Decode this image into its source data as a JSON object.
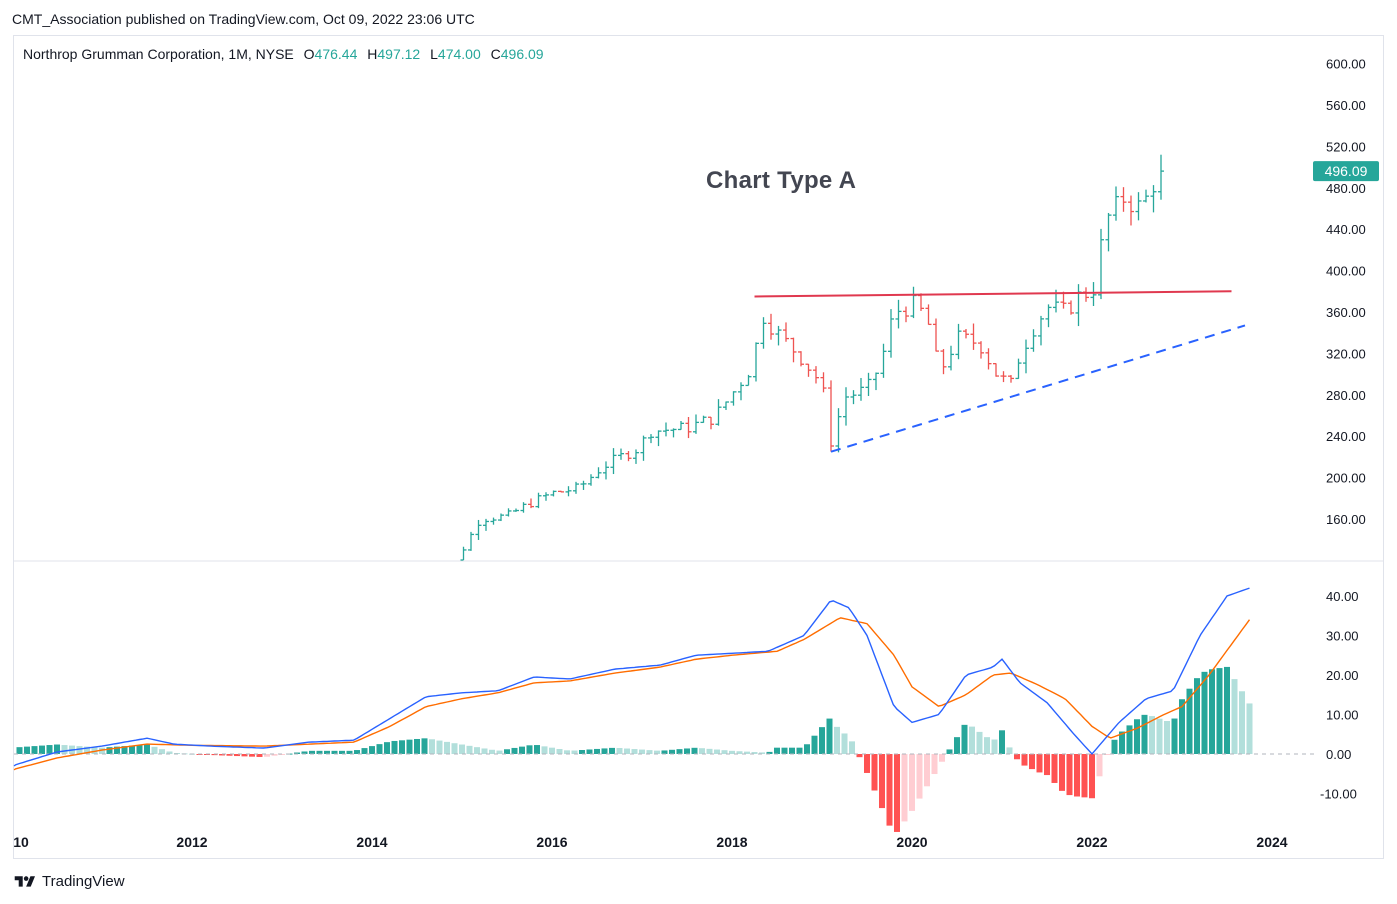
{
  "header": {
    "publish_text": "CMT_Association published on TradingView.com, Oct 09, 2022 23:06 UTC"
  },
  "legend": {
    "symbol": "Northrop Grumman Corporation, 1M, NYSE",
    "open_label": "O",
    "open": "476.44",
    "high_label": "H",
    "high": "497.12",
    "low_label": "L",
    "low": "474.00",
    "close_label": "C",
    "close": "496.09"
  },
  "annotation": "Chart Type A",
  "footer": {
    "brand": "TradingView"
  },
  "colors": {
    "up": "#26a69a",
    "down": "#ef5350",
    "macd": "#2962ff",
    "signal": "#ff6d00",
    "resistance": "#e0384f",
    "support": "#2962ff",
    "hist_up_strong": "#26a69a",
    "hist_up_weak": "#b2dfdb",
    "hist_down_strong": "#ff5252",
    "hist_down_weak": "#ffcdd2"
  },
  "chart_data": [
    {
      "type": "ohlc",
      "title": "",
      "interval": "1M",
      "price_axis_ticks": [
        160,
        200,
        240,
        280,
        320,
        360,
        400,
        440,
        480,
        520,
        560,
        600
      ],
      "last_price": "496.09",
      "date_ticks": [
        "10",
        "2012",
        "2014",
        "2016",
        "2018",
        "2020",
        "2022",
        "2024"
      ],
      "anchors": [
        [
          2014.6,
          105
        ],
        [
          2014.92,
          117
        ],
        [
          2015.2,
          160
        ],
        [
          2015.5,
          163
        ],
        [
          2015.75,
          175
        ],
        [
          2016.0,
          185
        ],
        [
          2016.3,
          190
        ],
        [
          2016.55,
          210
        ],
        [
          2016.8,
          222
        ],
        [
          2016.95,
          228
        ],
        [
          2017.1,
          245
        ],
        [
          2017.5,
          248
        ],
        [
          2017.8,
          258
        ],
        [
          2017.95,
          275
        ],
        [
          2018.2,
          305
        ],
        [
          2018.35,
          356
        ],
        [
          2018.55,
          335
        ],
        [
          2018.75,
          318
        ],
        [
          2019.0,
          290
        ],
        [
          2019.1,
          235
        ],
        [
          2019.25,
          278
        ],
        [
          2019.5,
          285
        ],
        [
          2019.65,
          310
        ],
        [
          2019.8,
          360
        ],
        [
          2020.05,
          368
        ],
        [
          2020.2,
          345
        ],
        [
          2020.3,
          300
        ],
        [
          2020.5,
          335
        ],
        [
          2020.75,
          330
        ],
        [
          2020.95,
          298
        ],
        [
          2021.1,
          290
        ],
        [
          2021.2,
          320
        ],
        [
          2021.35,
          345
        ],
        [
          2021.5,
          365
        ],
        [
          2021.7,
          360
        ],
        [
          2021.9,
          380
        ],
        [
          2022.0,
          375
        ],
        [
          2022.15,
          448
        ],
        [
          2022.35,
          470
        ],
        [
          2022.55,
          460
        ],
        [
          2022.7,
          488
        ],
        [
          2022.77,
          490
        ]
      ]
    },
    {
      "type": "macd",
      "value_axis_ticks": [
        -10,
        0,
        10,
        20,
        30,
        40
      ],
      "macd_line": [
        [
          2010.0,
          -3
        ],
        [
          2010.5,
          0.5
        ],
        [
          2011.0,
          2
        ],
        [
          2011.5,
          4
        ],
        [
          2011.8,
          2.5
        ],
        [
          2012.2,
          2
        ],
        [
          2012.8,
          1.5
        ],
        [
          2013.3,
          3
        ],
        [
          2013.8,
          3.5
        ],
        [
          2014.2,
          9
        ],
        [
          2014.6,
          14.5
        ],
        [
          2015.0,
          15.5
        ],
        [
          2015.4,
          16
        ],
        [
          2015.8,
          19.5
        ],
        [
          2016.2,
          19
        ],
        [
          2016.7,
          21.5
        ],
        [
          2017.2,
          22.5
        ],
        [
          2017.6,
          25
        ],
        [
          2018.0,
          25.5
        ],
        [
          2018.4,
          26
        ],
        [
          2018.8,
          30
        ],
        [
          2019.1,
          39
        ],
        [
          2019.3,
          37
        ],
        [
          2019.5,
          30
        ],
        [
          2019.8,
          12
        ],
        [
          2020.0,
          8
        ],
        [
          2020.3,
          10
        ],
        [
          2020.6,
          20
        ],
        [
          2020.9,
          22
        ],
        [
          2021.0,
          24
        ],
        [
          2021.2,
          18
        ],
        [
          2021.5,
          13
        ],
        [
          2021.8,
          5
        ],
        [
          2022.0,
          0
        ],
        [
          2022.3,
          8
        ],
        [
          2022.6,
          14
        ],
        [
          2022.9,
          16
        ],
        [
          2023.2,
          30
        ],
        [
          2023.5,
          40
        ],
        [
          2023.75,
          42
        ]
      ],
      "signal_line": [
        [
          2010.0,
          -4
        ],
        [
          2010.5,
          -1
        ],
        [
          2011.0,
          1
        ],
        [
          2011.5,
          2.5
        ],
        [
          2012.0,
          2.2
        ],
        [
          2012.8,
          2
        ],
        [
          2013.3,
          2.5
        ],
        [
          2013.8,
          3
        ],
        [
          2014.2,
          7
        ],
        [
          2014.6,
          12
        ],
        [
          2015.0,
          14
        ],
        [
          2015.4,
          15.5
        ],
        [
          2015.8,
          18
        ],
        [
          2016.2,
          18.5
        ],
        [
          2016.7,
          20.5
        ],
        [
          2017.2,
          22
        ],
        [
          2017.6,
          24
        ],
        [
          2018.0,
          25
        ],
        [
          2018.5,
          26
        ],
        [
          2018.8,
          29
        ],
        [
          2019.2,
          34.5
        ],
        [
          2019.5,
          33
        ],
        [
          2019.8,
          25
        ],
        [
          2020.0,
          17
        ],
        [
          2020.3,
          12
        ],
        [
          2020.6,
          15
        ],
        [
          2020.9,
          20
        ],
        [
          2021.1,
          20.5
        ],
        [
          2021.4,
          17.5
        ],
        [
          2021.7,
          14
        ],
        [
          2022.0,
          7
        ],
        [
          2022.2,
          4
        ],
        [
          2022.5,
          6.5
        ],
        [
          2022.8,
          10
        ],
        [
          2023.0,
          12
        ],
        [
          2023.3,
          20
        ],
        [
          2023.75,
          34
        ]
      ]
    }
  ]
}
